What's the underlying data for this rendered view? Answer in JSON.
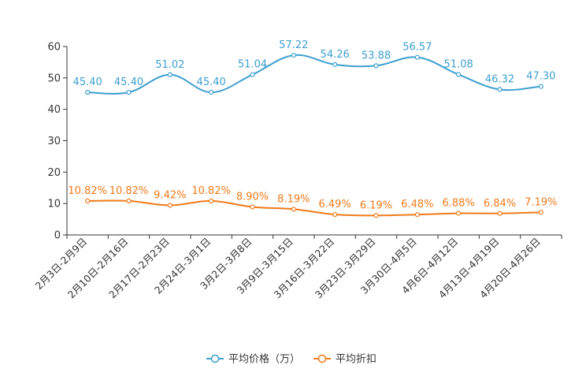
{
  "chart_data": {
    "type": "line",
    "title": "",
    "xlabel": "",
    "ylabel": "",
    "ylim": [
      0,
      60
    ],
    "yticks": [
      0,
      10,
      20,
      30,
      40,
      50,
      60
    ],
    "grid": false,
    "legend_position": "bottom-center",
    "categories": [
      "2月3日-2月9日",
      "2月10日-2月16日",
      "2月17日-2月23日",
      "2月24日-3月1日",
      "3月2日-3月8日",
      "3月9日-3月15日",
      "3月16日-3月22日",
      "3月23日-3月29日",
      "3月30日-4月5日",
      "4月6日-4月12日",
      "4月13日-4月19日",
      "4月20日-4月26日"
    ],
    "series": [
      {
        "name": "平均价格（万）",
        "color": "#3d9fcf",
        "values": [
          45.4,
          45.4,
          51.02,
          45.4,
          51.04,
          57.22,
          54.26,
          53.88,
          56.57,
          51.08,
          46.32,
          47.3
        ],
        "labels": [
          "45.40",
          "45.40",
          "51.02",
          "45.40",
          "51.04",
          "57.22",
          "54.26",
          "53.88",
          "56.57",
          "51.08",
          "46.32",
          "47.30"
        ]
      },
      {
        "name": "平均折扣",
        "color": "#f07a1a",
        "values": [
          10.82,
          10.82,
          9.42,
          10.82,
          8.9,
          8.19,
          6.49,
          6.19,
          6.48,
          6.88,
          6.84,
          7.19
        ],
        "labels": [
          "10.82%",
          "10.82%",
          "9.42%",
          "10.82%",
          "8.90%",
          "8.19%",
          "6.49%",
          "6.19%",
          "6.48%",
          "6.88%",
          "6.84%",
          "7.19%"
        ]
      }
    ]
  }
}
